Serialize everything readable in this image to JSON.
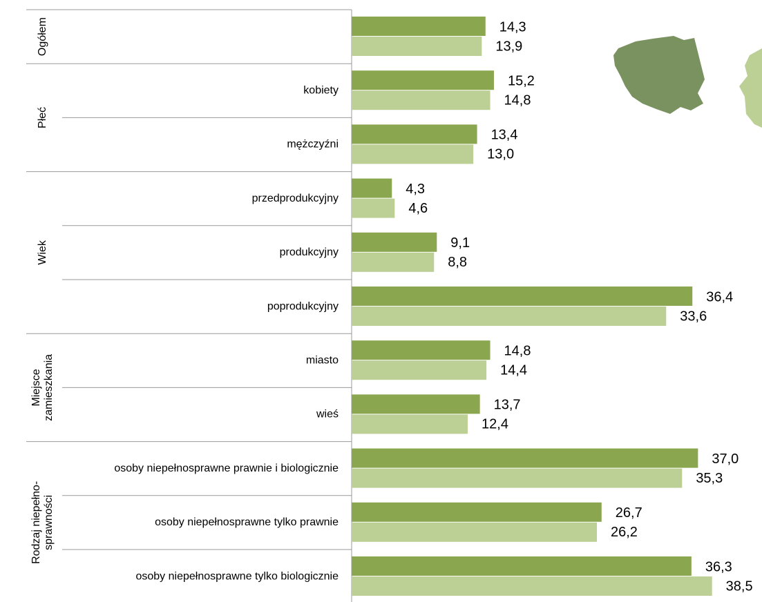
{
  "chart_data": {
    "type": "bar",
    "orientation": "horizontal",
    "categories": [
      null,
      "kobiety",
      "mężczyźni",
      "przedprodukcyjny",
      "produkcyjny",
      "poprodukcyjny",
      "miasto",
      "wieś",
      "osoby niepełnosprawne prawnie i biologicznie",
      "osoby niepełnosprawne tylko prawnie",
      "osoby niepełnosprawne tylko biologicznie"
    ],
    "groups": [
      {
        "label": [
          "Ogółem"
        ],
        "size": 1
      },
      {
        "label": [
          "Płeć"
        ],
        "size": 2
      },
      {
        "label": [
          "Wiek"
        ],
        "size": 3
      },
      {
        "label": [
          "Miejsce",
          "zamieszkania"
        ],
        "size": 2
      },
      {
        "label": [
          "Rodzaj niepełno-",
          "sprawności"
        ],
        "size": 3
      }
    ],
    "series": [
      {
        "color": "#8aa64e",
        "values": [
          14.3,
          15.2,
          13.4,
          4.3,
          9.1,
          36.4,
          14.8,
          13.7,
          37.0,
          26.7,
          36.3
        ],
        "value_labels": [
          "14,3",
          "15,2",
          "13,4",
          "4,3",
          "9,1",
          "36,4",
          "14,8",
          "13,7",
          "37,0",
          "26,7",
          "36,3"
        ]
      },
      {
        "color": "#bccf95",
        "values": [
          13.9,
          14.8,
          13.0,
          4.6,
          8.8,
          33.6,
          14.4,
          12.4,
          35.3,
          26.2,
          38.5
        ],
        "value_labels": [
          "13,9",
          "14,8",
          "13,0",
          "4,6",
          "8,8",
          "33,6",
          "14,4",
          "12,4",
          "35,3",
          "26,2",
          "38,5"
        ]
      }
    ],
    "xlim": [
      0,
      40
    ]
  }
}
